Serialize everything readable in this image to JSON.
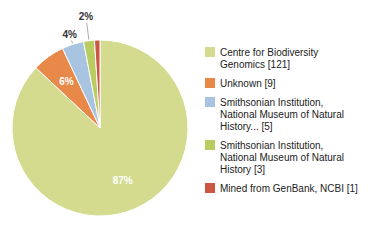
{
  "chart_data": {
    "type": "pie",
    "categories": [
      "Centre for Biodiversity\nGenomics [121]",
      "Unknown [9]",
      "Smithsonian Institution,\nNational Museum of Natural\nHistory... [5]",
      "Smithsonian Institution,\nNational Museum of Natural\nHistory [3]",
      "Mined from GenBank, NCBI [1]"
    ],
    "values": [
      87,
      6,
      4,
      2,
      1
    ],
    "value_labels": [
      "87%",
      "6%",
      "4%",
      "2%",
      null
    ],
    "colors": [
      "#d4db8e",
      "#e8894a",
      "#a8c4e0",
      "#b8cc60",
      "#cc5544"
    ],
    "data_labels": true,
    "legend": "right"
  }
}
